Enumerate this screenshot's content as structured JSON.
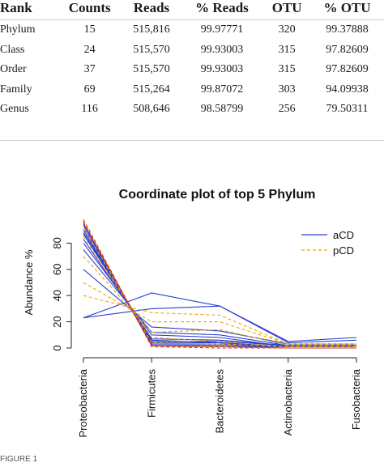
{
  "table": {
    "headers": [
      "Rank",
      "Counts",
      "Reads",
      "% Reads",
      "OTU",
      "% OTU"
    ],
    "rows": [
      [
        "Phylum",
        "15",
        "515,816",
        "99.97771",
        "320",
        "99.37888"
      ],
      [
        "Class",
        "24",
        "515,570",
        "99.93003",
        "315",
        "97.82609"
      ],
      [
        "Order",
        "37",
        "515,570",
        "99.93003",
        "315",
        "97.82609"
      ],
      [
        "Family",
        "69",
        "515,264",
        "99.87072",
        "303",
        "94.09938"
      ],
      [
        "Genus",
        "116",
        "508,646",
        "98.58799",
        "256",
        "79.50311"
      ]
    ]
  },
  "chart_data": {
    "type": "line",
    "title": "Coordinate plot of top 5 Phylum",
    "xlabel": "",
    "ylabel": "Abundance %",
    "categories": [
      "Proteobacteria",
      "Firmicutes",
      "Bacteroidetes",
      "Actinobacteria",
      "Fusobacteria"
    ],
    "ylim": [
      0,
      100
    ],
    "yticks": [
      0,
      20,
      40,
      60,
      80
    ],
    "legend_position": "top-right",
    "series_styles": [
      {
        "name": "aCD",
        "color": "#2b3fcf",
        "dash": "solid"
      },
      {
        "name": "pCD",
        "color": "#f0a500",
        "dash": "dashed"
      }
    ],
    "red_color": "#e03020",
    "lines": [
      {
        "group": "aCD",
        "values": [
          23,
          42,
          32,
          5,
          8
        ]
      },
      {
        "group": "aCD",
        "values": [
          23,
          30,
          32,
          4,
          6
        ]
      },
      {
        "group": "aCD",
        "values": [
          60,
          16,
          13,
          3,
          3
        ]
      },
      {
        "group": "aCD",
        "values": [
          75,
          12,
          10,
          2,
          2
        ]
      },
      {
        "group": "aCD",
        "values": [
          83,
          7,
          6,
          2,
          2
        ]
      },
      {
        "group": "aCD",
        "values": [
          87,
          5,
          5,
          2,
          2
        ]
      },
      {
        "group": "aCD",
        "values": [
          90,
          4,
          4,
          1,
          1
        ]
      },
      {
        "group": "aCD",
        "values": [
          92,
          3,
          3,
          1,
          1
        ]
      },
      {
        "group": "aCD",
        "values": [
          94,
          2,
          2,
          1,
          1
        ]
      },
      {
        "group": "aCD",
        "values": [
          95,
          2,
          1,
          1,
          1
        ]
      },
      {
        "group": "aCD",
        "values": [
          88,
          6,
          4,
          1,
          1
        ]
      },
      {
        "group": "aCD",
        "values": [
          80,
          10,
          8,
          1,
          1
        ]
      },
      {
        "group": "pCD",
        "values": [
          40,
          27,
          25,
          3,
          3
        ]
      },
      {
        "group": "pCD",
        "values": [
          50,
          20,
          20,
          3,
          3
        ]
      },
      {
        "group": "pCD",
        "values": [
          70,
          12,
          14,
          2,
          2
        ]
      },
      {
        "group": "pCD",
        "values": [
          85,
          8,
          5,
          1,
          1
        ]
      },
      {
        "group": "pCD",
        "values": [
          92,
          4,
          3,
          1,
          1
        ]
      },
      {
        "group": "pCD",
        "values": [
          97,
          1,
          1,
          0,
          0
        ]
      },
      {
        "group": "red",
        "values": [
          98,
          1,
          0,
          0,
          0
        ]
      },
      {
        "group": "red",
        "values": [
          96,
          2,
          1,
          0,
          0
        ]
      }
    ]
  },
  "caption": "FIGURE 1"
}
